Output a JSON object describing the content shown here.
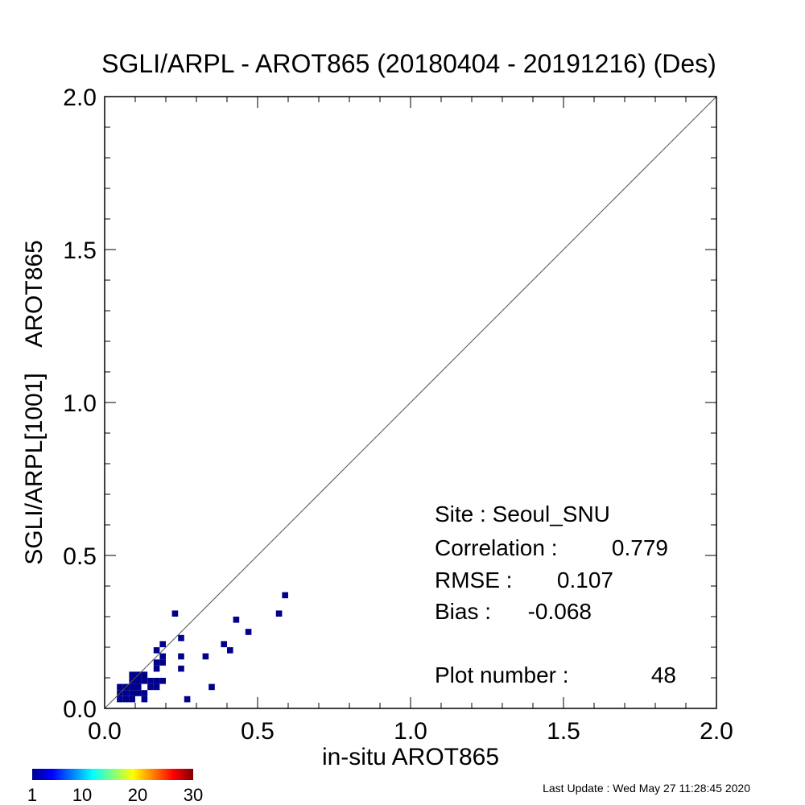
{
  "chart_data": {
    "type": "scatter",
    "title": "SGLI/ARPL - AROT865 (20180404 - 20191216) (Des)",
    "xlabel": "in-situ AROT865",
    "ylabel": "SGLI/ARPL[1001]    AROT865",
    "xlim": [
      0.0,
      2.0
    ],
    "ylim": [
      0.0,
      2.0
    ],
    "x_ticks": [
      "0.0",
      "0.5",
      "1.0",
      "1.5",
      "2.0"
    ],
    "y_ticks": [
      "0.0",
      "0.5",
      "1.0",
      "1.5",
      "2.0"
    ],
    "tick_values": [
      0.0,
      0.5,
      1.0,
      1.5,
      2.0
    ],
    "one_to_one_line": true,
    "grid": false,
    "bin_size": 0.02,
    "points": [
      {
        "x": 0.05,
        "y": 0.03
      },
      {
        "x": 0.05,
        "y": 0.05
      },
      {
        "x": 0.05,
        "y": 0.07
      },
      {
        "x": 0.07,
        "y": 0.05
      },
      {
        "x": 0.07,
        "y": 0.07
      },
      {
        "x": 0.07,
        "y": 0.03
      },
      {
        "x": 0.09,
        "y": 0.05
      },
      {
        "x": 0.09,
        "y": 0.07
      },
      {
        "x": 0.09,
        "y": 0.09
      },
      {
        "x": 0.09,
        "y": 0.11
      },
      {
        "x": 0.09,
        "y": 0.03
      },
      {
        "x": 0.11,
        "y": 0.05
      },
      {
        "x": 0.11,
        "y": 0.07
      },
      {
        "x": 0.11,
        "y": 0.09
      },
      {
        "x": 0.11,
        "y": 0.11
      },
      {
        "x": 0.13,
        "y": 0.05
      },
      {
        "x": 0.13,
        "y": 0.09
      },
      {
        "x": 0.13,
        "y": 0.11
      },
      {
        "x": 0.13,
        "y": 0.03
      },
      {
        "x": 0.15,
        "y": 0.07
      },
      {
        "x": 0.15,
        "y": 0.09
      },
      {
        "x": 0.17,
        "y": 0.07
      },
      {
        "x": 0.17,
        "y": 0.09
      },
      {
        "x": 0.17,
        "y": 0.13
      },
      {
        "x": 0.17,
        "y": 0.15
      },
      {
        "x": 0.17,
        "y": 0.19
      },
      {
        "x": 0.19,
        "y": 0.09
      },
      {
        "x": 0.19,
        "y": 0.15
      },
      {
        "x": 0.19,
        "y": 0.17
      },
      {
        "x": 0.19,
        "y": 0.21
      },
      {
        "x": 0.23,
        "y": 0.31
      },
      {
        "x": 0.25,
        "y": 0.23
      },
      {
        "x": 0.25,
        "y": 0.17
      },
      {
        "x": 0.25,
        "y": 0.13
      },
      {
        "x": 0.27,
        "y": 0.03
      },
      {
        "x": 0.33,
        "y": 0.17
      },
      {
        "x": 0.35,
        "y": 0.07
      },
      {
        "x": 0.39,
        "y": 0.21
      },
      {
        "x": 0.41,
        "y": 0.19
      },
      {
        "x": 0.43,
        "y": 0.29
      },
      {
        "x": 0.47,
        "y": 0.25
      },
      {
        "x": 0.57,
        "y": 0.31
      },
      {
        "x": 0.59,
        "y": 0.37
      }
    ],
    "point_color": "#00008b",
    "stats": {
      "site_label": "Site : Seoul_SNU",
      "correlation_label": "Correlation :",
      "correlation_value": "0.779",
      "rmse_label": "RMSE :",
      "rmse_value": "0.107",
      "bias_label": "Bias :",
      "bias_value": "-0.068",
      "plot_number_label": "Plot number :",
      "plot_number_value": "48"
    },
    "colorbar": {
      "ticks": [
        "1",
        "10",
        "20",
        "30"
      ],
      "tick_values": [
        1,
        10,
        20,
        30
      ],
      "range": [
        1,
        30
      ],
      "colormap": [
        "#00008f",
        "#0000ff",
        "#0080ff",
        "#00ffff",
        "#80ff80",
        "#ffff00",
        "#ff8000",
        "#ff0000",
        "#800000"
      ]
    }
  },
  "footer": {
    "last_update": "Last Update : Wed May 27 11:28:45 2020"
  }
}
